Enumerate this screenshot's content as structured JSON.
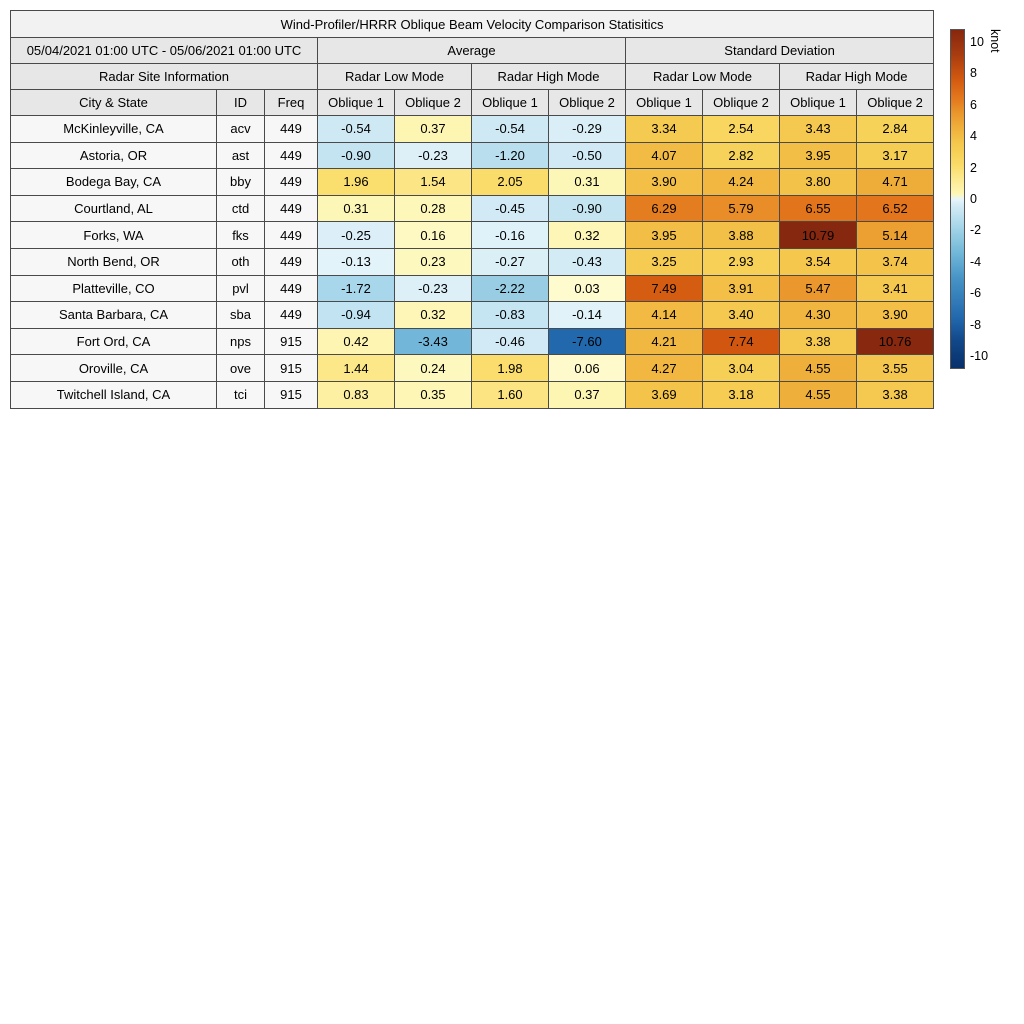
{
  "title": "Wind-Profiler/HRRR Oblique Beam Velocity Comparison Statisitics",
  "header": {
    "date_range": "05/04/2021 01:00 UTC - 05/06/2021 01:00 UTC",
    "group_average": "Average",
    "group_std": "Standard Deviation",
    "site_info": "Radar Site Information",
    "mode_labels": [
      "Radar Low Mode",
      "Radar High Mode",
      "Radar Low Mode",
      "Radar High Mode"
    ],
    "col_city": "City & State",
    "col_id": "ID",
    "col_freq": "Freq",
    "oblique_labels": [
      "Oblique 1",
      "Oblique 2",
      "Oblique 1",
      "Oblique 2",
      "Oblique 1",
      "Oblique 2",
      "Oblique 1",
      "Oblique 2"
    ]
  },
  "colorbar": {
    "unit": "knot",
    "ticks": [
      10,
      8,
      6,
      4,
      2,
      0,
      -2,
      -4,
      -6,
      -8,
      -10
    ],
    "vmin": -10.8,
    "vmax": 10.8
  },
  "chart_data": {
    "type": "heatmap_table",
    "title": "Wind-Profiler/HRRR Oblique Beam Velocity Comparison Statisitics",
    "period": "05/04/2021 01:00 UTC - 05/06/2021 01:00 UTC",
    "unit": "knot",
    "color_scale_range": [
      -10.8,
      10.8
    ],
    "value_columns": [
      "Average / Radar Low Mode / Oblique 1",
      "Average / Radar Low Mode / Oblique 2",
      "Average / Radar High Mode / Oblique 1",
      "Average / Radar High Mode / Oblique 2",
      "Standard Deviation / Radar Low Mode / Oblique 1",
      "Standard Deviation / Radar Low Mode / Oblique 2",
      "Standard Deviation / Radar High Mode / Oblique 1",
      "Standard Deviation / Radar High Mode / Oblique 2"
    ],
    "rows": [
      {
        "city": "McKinleyville, CA",
        "id": "acv",
        "freq": "449",
        "values": [
          -0.54,
          0.37,
          -0.54,
          -0.29,
          3.34,
          2.54,
          3.43,
          2.84
        ]
      },
      {
        "city": "Astoria, OR",
        "id": "ast",
        "freq": "449",
        "values": [
          -0.9,
          -0.23,
          -1.2,
          -0.5,
          4.07,
          2.82,
          3.95,
          3.17
        ]
      },
      {
        "city": "Bodega Bay, CA",
        "id": "bby",
        "freq": "449",
        "values": [
          1.96,
          1.54,
          2.05,
          0.31,
          3.9,
          4.24,
          3.8,
          4.71
        ]
      },
      {
        "city": "Courtland, AL",
        "id": "ctd",
        "freq": "449",
        "values": [
          0.31,
          0.28,
          -0.45,
          -0.9,
          6.29,
          5.79,
          6.55,
          6.52
        ]
      },
      {
        "city": "Forks, WA",
        "id": "fks",
        "freq": "449",
        "values": [
          -0.25,
          0.16,
          -0.16,
          0.32,
          3.95,
          3.88,
          10.79,
          5.14
        ]
      },
      {
        "city": "North Bend, OR",
        "id": "oth",
        "freq": "449",
        "values": [
          -0.13,
          0.23,
          -0.27,
          -0.43,
          3.25,
          2.93,
          3.54,
          3.74
        ]
      },
      {
        "city": "Platteville, CO",
        "id": "pvl",
        "freq": "449",
        "values": [
          -1.72,
          -0.23,
          -2.22,
          0.03,
          7.49,
          3.91,
          5.47,
          3.41
        ]
      },
      {
        "city": "Santa Barbara, CA",
        "id": "sba",
        "freq": "449",
        "values": [
          -0.94,
          0.32,
          -0.83,
          -0.14,
          4.14,
          3.4,
          4.3,
          3.9
        ]
      },
      {
        "city": "Fort Ord, CA",
        "id": "nps",
        "freq": "915",
        "values": [
          0.42,
          -3.43,
          -0.46,
          -7.6,
          4.21,
          7.74,
          3.38,
          10.76
        ]
      },
      {
        "city": "Oroville, CA",
        "id": "ove",
        "freq": "915",
        "values": [
          1.44,
          0.24,
          1.98,
          0.06,
          4.27,
          3.04,
          4.55,
          3.55
        ]
      },
      {
        "city": "Twitchell Island, CA",
        "id": "tci",
        "freq": "915",
        "values": [
          0.83,
          0.35,
          1.6,
          0.37,
          3.69,
          3.18,
          4.55,
          3.38
        ]
      }
    ]
  }
}
